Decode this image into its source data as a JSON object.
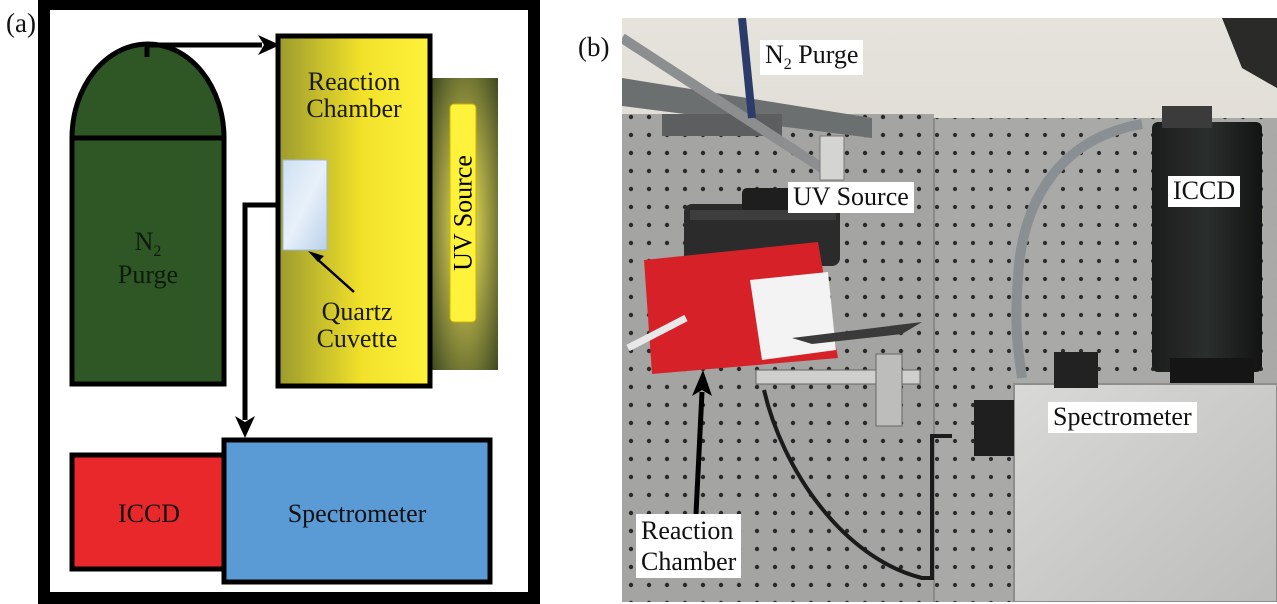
{
  "panel_a": {
    "label": "(a)",
    "tank": {
      "label_symbol": "N",
      "label_sub": "2",
      "label_word": "Purge",
      "color": "#2e5725"
    },
    "reaction_chamber": {
      "line1": "Reaction",
      "line2": "Chamber",
      "color": "#f1e12a"
    },
    "uv_source": {
      "label": "UV Source",
      "color": "#fff23a"
    },
    "cuvette": {
      "line1": "Quartz",
      "line2": "Cuvette"
    },
    "iccd": {
      "label": "ICCD",
      "color": "#e8282a"
    },
    "spectrometer": {
      "label": "Spectrometer",
      "color": "#5b9bd5"
    }
  },
  "panel_b": {
    "label": "(b)",
    "labels": {
      "n2_symbol": "N",
      "n2_sub": "2",
      "n2_word": "Purge",
      "uv_source": "UV Source",
      "iccd": "ICCD",
      "spectrometer": "Spectrometer",
      "reaction_line1": "Reaction",
      "reaction_line2": "Chamber"
    }
  }
}
